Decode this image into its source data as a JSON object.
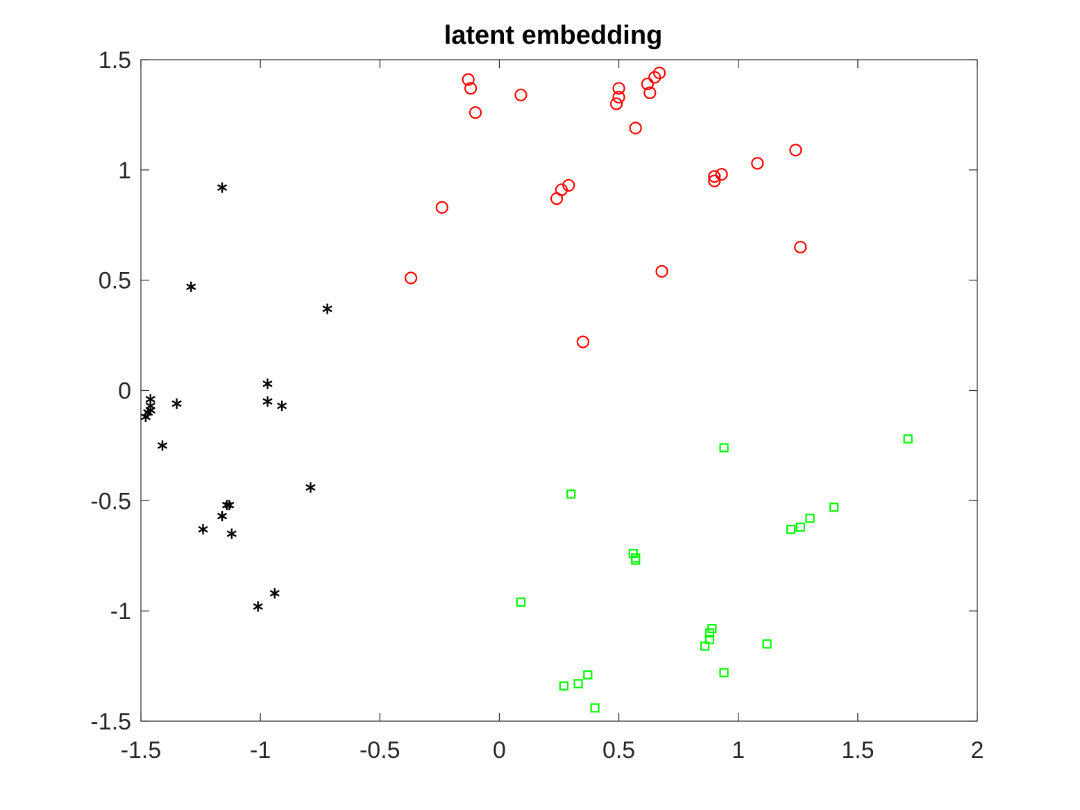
{
  "chart_data": {
    "type": "scatter",
    "title": "latent embedding",
    "xlabel": "",
    "ylabel": "",
    "xlim": [
      -1.5,
      2
    ],
    "ylim": [
      -1.5,
      1.5
    ],
    "xticks": [
      -1.5,
      -1,
      -0.5,
      0,
      0.5,
      1,
      1.5,
      2
    ],
    "xtick_labels": [
      "-1.5",
      "-1",
      "-0.5",
      "0",
      "0.5",
      "1",
      "1.5",
      "2"
    ],
    "yticks": [
      -1.5,
      -1,
      -0.5,
      0,
      0.5,
      1,
      1.5
    ],
    "ytick_labels": [
      "-1.5",
      "-1",
      "-0.5",
      "0",
      "0.5",
      "1",
      "1.5"
    ],
    "grid": false,
    "box": true,
    "series": [
      {
        "marker": "circle",
        "color": "#ff0000",
        "points": [
          [
            -0.13,
            1.41
          ],
          [
            -0.12,
            1.37
          ],
          [
            -0.1,
            1.26
          ],
          [
            0.09,
            1.34
          ],
          [
            0.49,
            1.3
          ],
          [
            0.5,
            1.37
          ],
          [
            0.5,
            1.33
          ],
          [
            0.62,
            1.39
          ],
          [
            0.63,
            1.35
          ],
          [
            0.65,
            1.42
          ],
          [
            0.67,
            1.44
          ],
          [
            0.57,
            1.19
          ],
          [
            -0.24,
            0.83
          ],
          [
            0.24,
            0.87
          ],
          [
            0.26,
            0.91
          ],
          [
            0.29,
            0.93
          ],
          [
            0.9,
            0.95
          ],
          [
            0.9,
            0.97
          ],
          [
            0.93,
            0.98
          ],
          [
            1.08,
            1.03
          ],
          [
            1.24,
            1.09
          ],
          [
            1.26,
            0.65
          ],
          [
            -0.37,
            0.51
          ],
          [
            0.68,
            0.54
          ],
          [
            0.35,
            0.22
          ]
        ]
      },
      {
        "marker": "asterisk",
        "color": "#000000",
        "points": [
          [
            -1.16,
            0.92
          ],
          [
            -1.29,
            0.47
          ],
          [
            -0.72,
            0.37
          ],
          [
            -0.97,
            0.03
          ],
          [
            -0.97,
            -0.05
          ],
          [
            -0.91,
            -0.07
          ],
          [
            -1.35,
            -0.06
          ],
          [
            -1.46,
            -0.04
          ],
          [
            -1.46,
            -0.07
          ],
          [
            -1.47,
            -0.1
          ],
          [
            -1.46,
            -0.09
          ],
          [
            -1.48,
            -0.12
          ],
          [
            -1.41,
            -0.25
          ],
          [
            -0.79,
            -0.44
          ],
          [
            -1.13,
            -0.52
          ],
          [
            -1.14,
            -0.52
          ],
          [
            -1.16,
            -0.57
          ],
          [
            -1.24,
            -0.63
          ],
          [
            -1.12,
            -0.65
          ],
          [
            -0.94,
            -0.92
          ],
          [
            -1.01,
            -0.98
          ]
        ]
      },
      {
        "marker": "square",
        "color": "#00ff00",
        "points": [
          [
            1.71,
            -0.22
          ],
          [
            0.94,
            -0.26
          ],
          [
            0.3,
            -0.47
          ],
          [
            1.4,
            -0.53
          ],
          [
            1.3,
            -0.58
          ],
          [
            1.26,
            -0.62
          ],
          [
            1.22,
            -0.63
          ],
          [
            0.56,
            -0.74
          ],
          [
            0.57,
            -0.76
          ],
          [
            0.57,
            -0.77
          ],
          [
            0.09,
            -0.96
          ],
          [
            0.89,
            -1.08
          ],
          [
            0.88,
            -1.1
          ],
          [
            0.88,
            -1.13
          ],
          [
            0.86,
            -1.16
          ],
          [
            1.12,
            -1.15
          ],
          [
            0.94,
            -1.28
          ],
          [
            0.37,
            -1.29
          ],
          [
            0.33,
            -1.33
          ],
          [
            0.27,
            -1.34
          ],
          [
            0.4,
            -1.44
          ]
        ]
      }
    ]
  }
}
